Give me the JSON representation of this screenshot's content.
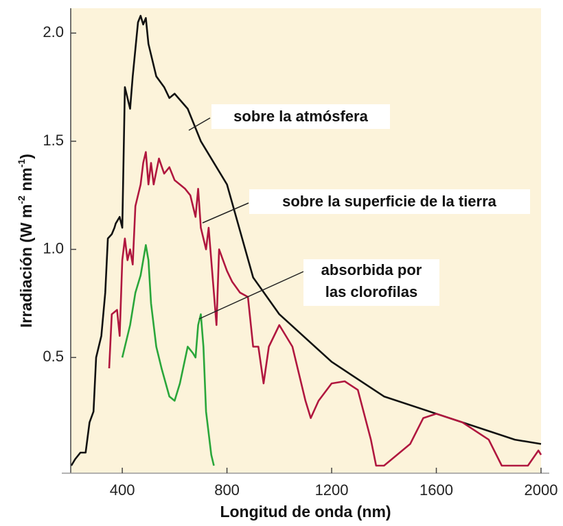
{
  "chart_data": {
    "type": "line",
    "x_label": "Longitud de onda (nm)",
    "y_label_parts": [
      "Irradiación (W m",
      "-2",
      " nm",
      "-1",
      ")"
    ],
    "xlim": [
      203,
      2000
    ],
    "ylim": [
      -0.035,
      2.115
    ],
    "xticks": [
      400,
      800,
      1200,
      1600,
      2000
    ],
    "yticks": [
      0.5,
      {
        "value": 1.0,
        "label": "1.0"
      },
      1.5,
      {
        "value": 2.0,
        "label": "2.0"
      }
    ],
    "background": "#fcf3da",
    "series": [
      {
        "name": "sobre la atmósfera",
        "color": "#111111",
        "x": [
          205,
          220,
          240,
          260,
          275,
          290,
          300,
          320,
          335,
          345,
          360,
          370,
          375,
          390,
          400,
          410,
          420,
          430,
          440,
          460,
          470,
          480,
          490,
          500,
          530,
          560,
          580,
          600,
          650,
          700,
          800,
          900,
          1000,
          1200,
          1400,
          1600,
          1800,
          1900,
          2000
        ],
        "values": [
          0,
          0.03,
          0.06,
          0.06,
          0.2,
          0.25,
          0.5,
          0.6,
          0.8,
          1.05,
          1.07,
          1.1,
          1.12,
          1.15,
          1.1,
          1.75,
          1.7,
          1.65,
          1.8,
          2.05,
          2.08,
          2.04,
          2.07,
          1.95,
          1.8,
          1.75,
          1.7,
          1.72,
          1.65,
          1.5,
          1.3,
          0.87,
          0.7,
          0.48,
          0.32,
          0.24,
          0.16,
          0.12,
          0.1
        ]
      },
      {
        "name": "sobre la superficie de la tierra",
        "color": "#b0173f",
        "x": [
          350,
          360,
          380,
          390,
          400,
          410,
          420,
          430,
          440,
          450,
          470,
          480,
          490,
          500,
          510,
          520,
          540,
          560,
          580,
          600,
          620,
          640,
          660,
          680,
          690,
          700,
          720,
          730,
          760,
          770,
          800,
          820,
          850,
          880,
          900,
          920,
          940,
          960,
          1000,
          1050,
          1100,
          1120,
          1150,
          1200,
          1250,
          1300,
          1350,
          1370,
          1400,
          1450,
          1500,
          1550,
          1600,
          1700,
          1800,
          1850,
          1900,
          1950,
          1990,
          2000
        ],
        "values": [
          0.45,
          0.7,
          0.72,
          0.6,
          0.95,
          1.05,
          0.95,
          1.0,
          0.93,
          1.2,
          1.3,
          1.4,
          1.45,
          1.3,
          1.4,
          1.3,
          1.42,
          1.35,
          1.38,
          1.32,
          1.3,
          1.28,
          1.25,
          1.15,
          1.28,
          1.1,
          1.0,
          1.1,
          0.65,
          1.0,
          0.9,
          0.85,
          0.8,
          0.78,
          0.55,
          0.55,
          0.38,
          0.55,
          0.65,
          0.55,
          0.3,
          0.22,
          0.3,
          0.38,
          0.39,
          0.35,
          0.12,
          0,
          0,
          0.05,
          0.1,
          0.22,
          0.24,
          0.2,
          0.12,
          0,
          0,
          0,
          0.07,
          0.05
        ]
      },
      {
        "name": "absorbida por las clorofilas",
        "name_lines": [
          "absorbida por",
          "las clorofilas"
        ],
        "color": "#2aa63a",
        "x": [
          400,
          430,
          450,
          470,
          480,
          490,
          500,
          510,
          530,
          550,
          580,
          600,
          620,
          650,
          670,
          680,
          690,
          700,
          710,
          720,
          740,
          750
        ],
        "values": [
          0.5,
          0.65,
          0.8,
          0.88,
          0.95,
          1.02,
          0.95,
          0.75,
          0.55,
          0.45,
          0.32,
          0.3,
          0.38,
          0.55,
          0.52,
          0.5,
          0.65,
          0.7,
          0.55,
          0.25,
          0.05,
          0
        ]
      }
    ]
  }
}
